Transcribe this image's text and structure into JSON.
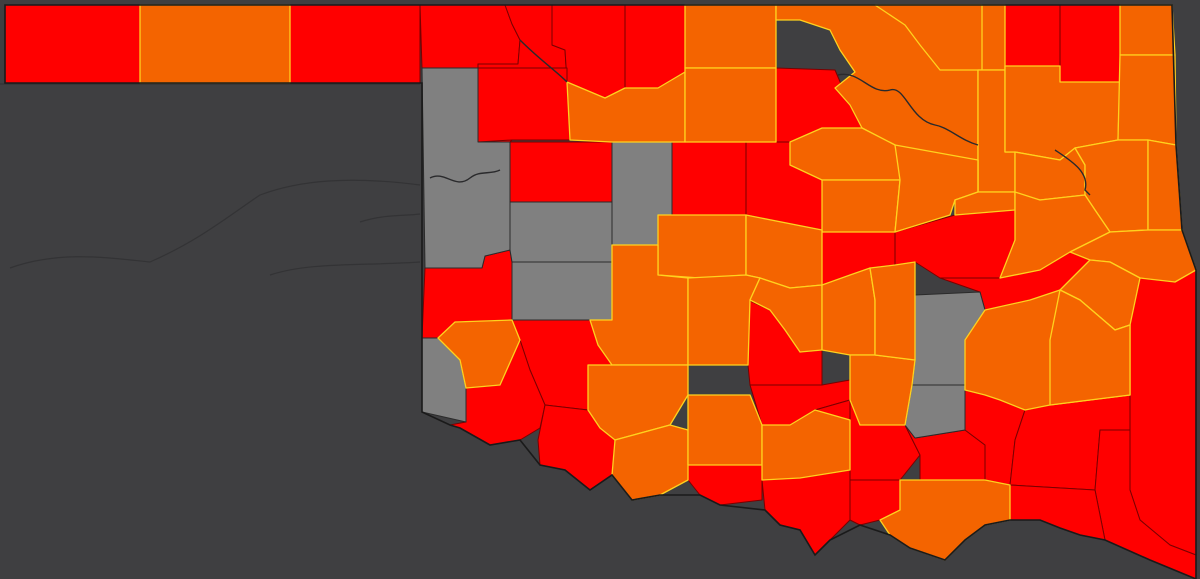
{
  "palette": {
    "background": "#3f3f41",
    "state_outline": "#1a1a1a",
    "red": "#ff0000",
    "red_border": "#7a0000",
    "orange": "#f46400",
    "orange_border": "#ffd21e",
    "gray": "#808080",
    "gray_border": "#2b2b2b"
  },
  "map": {
    "region": "Oklahoma",
    "counties": [
      {
        "name": "cimarron",
        "level": "red"
      },
      {
        "name": "texas",
        "level": "orange"
      },
      {
        "name": "beaver",
        "level": "red"
      },
      {
        "name": "harper",
        "level": "red"
      },
      {
        "name": "woods",
        "level": "red"
      },
      {
        "name": "alfalfa",
        "level": "red"
      },
      {
        "name": "grant",
        "level": "red"
      },
      {
        "name": "kay",
        "level": "orange"
      },
      {
        "name": "osage",
        "level": "orange"
      },
      {
        "name": "washington",
        "level": "orange"
      },
      {
        "name": "nowata",
        "level": "red"
      },
      {
        "name": "craig",
        "level": "red"
      },
      {
        "name": "ottawa",
        "level": "orange"
      },
      {
        "name": "ellis",
        "level": "gray"
      },
      {
        "name": "woodward",
        "level": "red"
      },
      {
        "name": "major",
        "level": "orange"
      },
      {
        "name": "garfield",
        "level": "orange"
      },
      {
        "name": "noble",
        "level": "red"
      },
      {
        "name": "pawnee",
        "level": "orange"
      },
      {
        "name": "rogers",
        "level": "orange"
      },
      {
        "name": "mayes",
        "level": "orange"
      },
      {
        "name": "delaware",
        "level": "orange"
      },
      {
        "name": "dewey",
        "level": "red"
      },
      {
        "name": "blaine",
        "level": "gray"
      },
      {
        "name": "kingfisher",
        "level": "red"
      },
      {
        "name": "logan",
        "level": "red"
      },
      {
        "name": "payne",
        "level": "orange"
      },
      {
        "name": "creek",
        "level": "orange"
      },
      {
        "name": "tulsa",
        "level": "orange"
      },
      {
        "name": "wagoner",
        "level": "orange"
      },
      {
        "name": "cherokee",
        "level": "orange"
      },
      {
        "name": "adair",
        "level": "orange"
      },
      {
        "name": "roger-mills",
        "level": "gray"
      },
      {
        "name": "custer",
        "level": "red"
      },
      {
        "name": "canadian",
        "level": "orange"
      },
      {
        "name": "oklahoma",
        "level": "orange"
      },
      {
        "name": "lincoln",
        "level": "red"
      },
      {
        "name": "okmulgee",
        "level": "red"
      },
      {
        "name": "muskogee",
        "level": "orange"
      },
      {
        "name": "sequoyah",
        "level": "orange"
      },
      {
        "name": "beckham",
        "level": "red"
      },
      {
        "name": "washita",
        "level": "gray"
      },
      {
        "name": "caddo",
        "level": "orange"
      },
      {
        "name": "grady",
        "level": "orange"
      },
      {
        "name": "cleveland",
        "level": "orange"
      },
      {
        "name": "pottawatomie",
        "level": "orange"
      },
      {
        "name": "okfuskee",
        "level": "gray"
      },
      {
        "name": "mcintosh",
        "level": "red"
      },
      {
        "name": "haskell",
        "level": "orange"
      },
      {
        "name": "le-flore",
        "level": "red"
      },
      {
        "name": "greer",
        "level": "orange"
      },
      {
        "name": "harmon",
        "level": "gray"
      },
      {
        "name": "kiowa",
        "level": "red"
      },
      {
        "name": "comanche",
        "level": "orange"
      },
      {
        "name": "mcclain",
        "level": "red"
      },
      {
        "name": "garvin",
        "level": "red"
      },
      {
        "name": "pontotoc",
        "level": "orange"
      },
      {
        "name": "seminole",
        "level": "orange"
      },
      {
        "name": "hughes",
        "level": "gray"
      },
      {
        "name": "pittsburg",
        "level": "orange"
      },
      {
        "name": "latimer",
        "level": "orange"
      },
      {
        "name": "jackson",
        "level": "red"
      },
      {
        "name": "tillman",
        "level": "red"
      },
      {
        "name": "cotton",
        "level": "orange"
      },
      {
        "name": "stephens",
        "level": "orange"
      },
      {
        "name": "carter",
        "level": "orange"
      },
      {
        "name": "murray",
        "level": "red"
      },
      {
        "name": "johnston",
        "level": "red"
      },
      {
        "name": "coal",
        "level": "red"
      },
      {
        "name": "atoka",
        "level": "red"
      },
      {
        "name": "pushmataha",
        "level": "red"
      },
      {
        "name": "mccurtain",
        "level": "red"
      },
      {
        "name": "jefferson",
        "level": "red"
      },
      {
        "name": "love",
        "level": "red"
      },
      {
        "name": "marshall",
        "level": "red"
      },
      {
        "name": "bryan",
        "level": "orange"
      },
      {
        "name": "choctaw",
        "level": "red"
      }
    ]
  }
}
